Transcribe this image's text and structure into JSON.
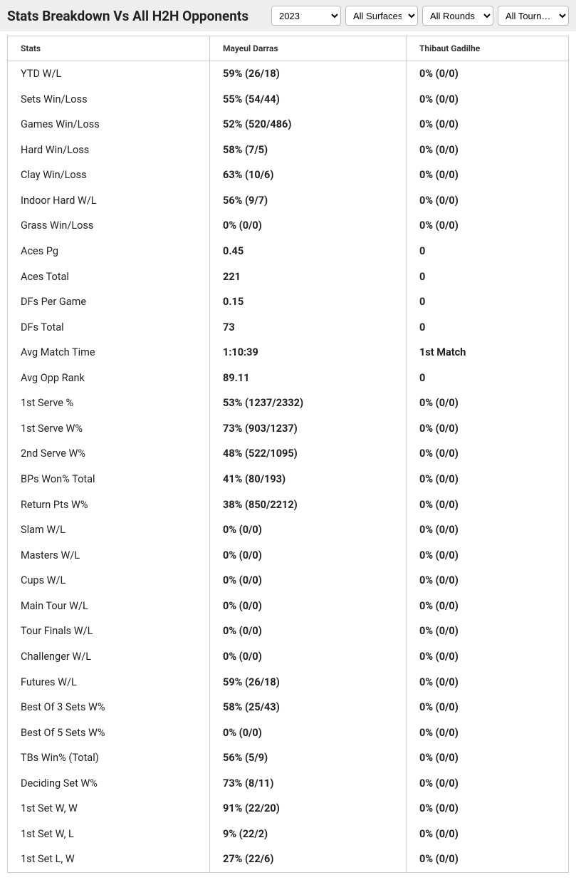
{
  "header": {
    "title": "Stats Breakdown Vs All H2H Opponents"
  },
  "filters": {
    "year": "2023",
    "surface": "All Surfaces",
    "round": "All Rounds",
    "tournament": "All Tourn…"
  },
  "table": {
    "columns": [
      "Stats",
      "Mayeul Darras",
      "Thibaut Gadilhe"
    ],
    "rows": [
      [
        "YTD W/L",
        "59% (26/18)",
        "0% (0/0)"
      ],
      [
        "Sets Win/Loss",
        "55% (54/44)",
        "0% (0/0)"
      ],
      [
        "Games Win/Loss",
        "52% (520/486)",
        "0% (0/0)"
      ],
      [
        "Hard Win/Loss",
        "58% (7/5)",
        "0% (0/0)"
      ],
      [
        "Clay Win/Loss",
        "63% (10/6)",
        "0% (0/0)"
      ],
      [
        "Indoor Hard W/L",
        "56% (9/7)",
        "0% (0/0)"
      ],
      [
        "Grass Win/Loss",
        "0% (0/0)",
        "0% (0/0)"
      ],
      [
        "Aces Pg",
        "0.45",
        "0"
      ],
      [
        "Aces Total",
        "221",
        "0"
      ],
      [
        "DFs Per Game",
        "0.15",
        "0"
      ],
      [
        "DFs Total",
        "73",
        "0"
      ],
      [
        "Avg Match Time",
        "1:10:39",
        "1st Match"
      ],
      [
        "Avg Opp Rank",
        "89.11",
        "0"
      ],
      [
        "1st Serve %",
        "53% (1237/2332)",
        "0% (0/0)"
      ],
      [
        "1st Serve W%",
        "73% (903/1237)",
        "0% (0/0)"
      ],
      [
        "2nd Serve W%",
        "48% (522/1095)",
        "0% (0/0)"
      ],
      [
        "BPs Won% Total",
        "41% (80/193)",
        "0% (0/0)"
      ],
      [
        "Return Pts W%",
        "38% (850/2212)",
        "0% (0/0)"
      ],
      [
        "Slam W/L",
        "0% (0/0)",
        "0% (0/0)"
      ],
      [
        "Masters W/L",
        "0% (0/0)",
        "0% (0/0)"
      ],
      [
        "Cups W/L",
        "0% (0/0)",
        "0% (0/0)"
      ],
      [
        "Main Tour W/L",
        "0% (0/0)",
        "0% (0/0)"
      ],
      [
        "Tour Finals W/L",
        "0% (0/0)",
        "0% (0/0)"
      ],
      [
        "Challenger W/L",
        "0% (0/0)",
        "0% (0/0)"
      ],
      [
        "Futures W/L",
        "59% (26/18)",
        "0% (0/0)"
      ],
      [
        "Best Of 3 Sets W%",
        "58% (25/43)",
        "0% (0/0)"
      ],
      [
        "Best Of 5 Sets W%",
        "0% (0/0)",
        "0% (0/0)"
      ],
      [
        "TBs Win% (Total)",
        "56% (5/9)",
        "0% (0/0)"
      ],
      [
        "Deciding Set W%",
        "73% (8/11)",
        "0% (0/0)"
      ],
      [
        "1st Set W, W",
        "91% (22/20)",
        "0% (0/0)"
      ],
      [
        "1st Set W, L",
        "9% (22/2)",
        "0% (0/0)"
      ],
      [
        "1st Set L, W",
        "27% (22/6)",
        "0% (0/0)"
      ]
    ]
  },
  "style": {
    "header_bg": "#eeeeee",
    "border_color": "#cccccc",
    "title_fontsize": 19,
    "th_fontsize": 12,
    "td_fontsize": 14.5,
    "text_color": "#222222"
  }
}
